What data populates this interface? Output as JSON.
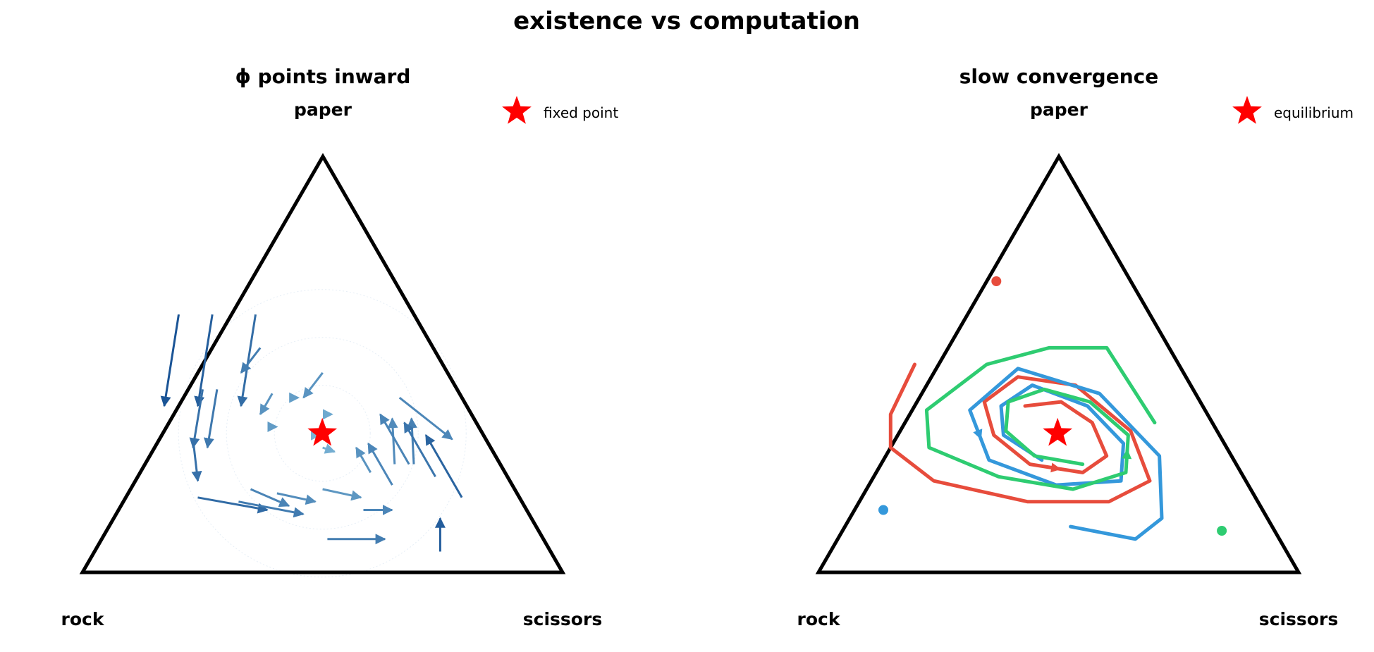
{
  "figure": {
    "title": "existence vs computation"
  },
  "chart_data": [
    {
      "type": "quiver",
      "title": "ϕ points inward",
      "vertices": {
        "top": "paper",
        "left": "rock",
        "right": "scissors"
      },
      "legend": {
        "label": "fixed point",
        "placement": "top-right"
      },
      "fixed_point": {
        "rock": 0.333,
        "paper": 0.333,
        "scissors": 0.333
      },
      "colors": {
        "arrows": "#2a6fb0",
        "triangle": "#000000",
        "star": "#ff0000"
      },
      "arrows": [
        {
          "rock": 0.49,
          "paper": 0.62,
          "scissors": -0.11,
          "d_rock": 0.14,
          "d_paper": -0.22,
          "d_scissors": 0.08
        },
        {
          "rock": 0.42,
          "paper": 0.62,
          "scissors": -0.04,
          "d_rock": 0.14,
          "d_paper": -0.22,
          "d_scissors": 0.08
        },
        {
          "rock": 0.33,
          "paper": 0.62,
          "scissors": 0.05,
          "d_rock": 0.14,
          "d_paper": -0.22,
          "d_scissors": 0.08
        },
        {
          "rock": 0.36,
          "paper": 0.54,
          "scissors": 0.1,
          "d_rock": 0.07,
          "d_paper": -0.06,
          "d_scissors": -0.01
        },
        {
          "rock": 0.26,
          "paper": 0.48,
          "scissors": 0.26,
          "d_rock": 0.07,
          "d_paper": -0.06,
          "d_scissors": -0.01
        },
        {
          "rock": 0.53,
          "paper": 0.44,
          "scissors": 0.03,
          "d_rock": 0.09,
          "d_paper": -0.14,
          "d_scissors": 0.05
        },
        {
          "rock": 0.5,
          "paper": 0.44,
          "scissors": 0.06,
          "d_rock": 0.09,
          "d_paper": -0.14,
          "d_scissors": 0.05
        },
        {
          "rock": 0.39,
          "paper": 0.43,
          "scissors": 0.18,
          "d_rock": 0.05,
          "d_paper": -0.05,
          "d_scissors": 0.0
        },
        {
          "rock": 0.34,
          "paper": 0.42,
          "scissors": 0.24,
          "d_rock": 0.0,
          "d_paper": 0.0,
          "d_scissors": 0.0
        },
        {
          "rock": 0.29,
          "paper": 0.38,
          "scissors": 0.33,
          "d_rock": 0.0,
          "d_paper": 0.0,
          "d_scissors": 0.0
        },
        {
          "rock": 0.61,
          "paper": 0.32,
          "scissors": 0.07,
          "d_rock": 0.04,
          "d_paper": -0.1,
          "d_scissors": 0.06
        },
        {
          "rock": 0.42,
          "paper": 0.35,
          "scissors": 0.23,
          "d_rock": 0.0,
          "d_paper": 0.0,
          "d_scissors": 0.0
        },
        {
          "rock": 0.34,
          "paper": 0.33,
          "scissors": 0.33,
          "d_rock": 0.0,
          "d_paper": 0.0,
          "d_scissors": 0.0
        },
        {
          "rock": 0.13,
          "paper": 0.42,
          "scissors": 0.45,
          "d_rock": -0.06,
          "d_paper": -0.1,
          "d_scissors": 0.16
        },
        {
          "rock": 0.18,
          "paper": 0.26,
          "scissors": 0.56,
          "d_rock": -0.05,
          "d_paper": 0.11,
          "d_scissors": -0.06
        },
        {
          "rock": 0.22,
          "paper": 0.26,
          "scissors": 0.52,
          "d_rock": -0.05,
          "d_paper": 0.11,
          "d_scissors": -0.06
        },
        {
          "rock": 0.55,
          "paper": 0.2,
          "scissors": 0.25,
          "d_rock": -0.06,
          "d_paper": -0.04,
          "d_scissors": 0.1
        },
        {
          "rock": 0.35,
          "paper": 0.3,
          "scissors": 0.35,
          "d_rock": -0.02,
          "d_paper": -0.01,
          "d_scissors": 0.03
        },
        {
          "rock": 0.28,
          "paper": 0.24,
          "scissors": 0.48,
          "d_rock": 0.0,
          "d_paper": 0.06,
          "d_scissors": -0.06
        },
        {
          "rock": 0.25,
          "paper": 0.21,
          "scissors": 0.54,
          "d_rock": 0.0,
          "d_paper": 0.1,
          "d_scissors": -0.1
        },
        {
          "rock": 0.12,
          "paper": 0.18,
          "scissors": 0.7,
          "d_rock": 0.0,
          "d_paper": 0.15,
          "d_scissors": -0.15
        },
        {
          "rock": 0.15,
          "paper": 0.23,
          "scissors": 0.62,
          "d_rock": 0.0,
          "d_paper": 0.13,
          "d_scissors": -0.13
        },
        {
          "rock": 0.19,
          "paper": 0.26,
          "scissors": 0.55,
          "d_rock": 0.0,
          "d_paper": 0.12,
          "d_scissors": -0.12
        },
        {
          "rock": 0.67,
          "paper": 0.18,
          "scissors": 0.15,
          "d_rock": -0.13,
          "d_paper": -0.03,
          "d_scissors": 0.16
        },
        {
          "rock": 0.59,
          "paper": 0.17,
          "scissors": 0.24,
          "d_rock": -0.12,
          "d_paper": -0.03,
          "d_scissors": 0.15
        },
        {
          "rock": 0.5,
          "paper": 0.19,
          "scissors": 0.31,
          "d_rock": -0.07,
          "d_paper": -0.02,
          "d_scissors": 0.09
        },
        {
          "rock": 0.4,
          "paper": 0.2,
          "scissors": 0.4,
          "d_rock": -0.07,
          "d_paper": -0.02,
          "d_scissors": 0.09
        },
        {
          "rock": 0.34,
          "paper": 0.15,
          "scissors": 0.51,
          "d_rock": -0.06,
          "d_paper": 0.0,
          "d_scissors": 0.06
        },
        {
          "rock": 0.45,
          "paper": 0.08,
          "scissors": 0.47,
          "d_rock": -0.12,
          "d_paper": 0.0,
          "d_scissors": 0.12
        },
        {
          "rock": 0.23,
          "paper": 0.05,
          "scissors": 0.72,
          "d_rock": -0.04,
          "d_paper": 0.08,
          "d_scissors": -0.04
        }
      ]
    },
    {
      "type": "line",
      "title": "slow convergence",
      "vertices": {
        "top": "paper",
        "left": "rock",
        "right": "scissors"
      },
      "legend": {
        "label": "equilibrium",
        "placement": "top-right"
      },
      "equilibrium": {
        "rock": 0.333,
        "paper": 0.333,
        "scissors": 0.333
      },
      "colors": {
        "triangle": "#000000",
        "star": "#ff0000"
      },
      "series": [
        {
          "color": "#e74c3c",
          "start": {
            "rock": 0.28,
            "paper": 0.7,
            "scissors": 0.02
          },
          "points": [
            {
              "rock": 0.55,
              "paper": 0.5,
              "scissors": -0.05
            },
            {
              "rock": 0.66,
              "paper": 0.38,
              "scissors": -0.04
            },
            {
              "rock": 0.7,
              "paper": 0.3,
              "scissors": 0.0
            },
            {
              "rock": 0.65,
              "paper": 0.22,
              "scissors": 0.13
            },
            {
              "rock": 0.48,
              "paper": 0.17,
              "scissors": 0.35
            },
            {
              "rock": 0.31,
              "paper": 0.17,
              "scissors": 0.52
            },
            {
              "rock": 0.2,
              "paper": 0.22,
              "scissors": 0.58
            },
            {
              "rock": 0.18,
              "paper": 0.34,
              "scissors": 0.48
            },
            {
              "rock": 0.24,
              "paper": 0.45,
              "scissors": 0.31
            },
            {
              "rock": 0.35,
              "paper": 0.47,
              "scissors": 0.18
            },
            {
              "rock": 0.45,
              "paper": 0.41,
              "scissors": 0.14
            },
            {
              "rock": 0.47,
              "paper": 0.33,
              "scissors": 0.2
            },
            {
              "rock": 0.43,
              "paper": 0.26,
              "scissors": 0.31
            },
            {
              "rock": 0.33,
              "paper": 0.24,
              "scissors": 0.43
            },
            {
              "rock": 0.26,
              "paper": 0.28,
              "scissors": 0.46
            },
            {
              "rock": 0.25,
              "paper": 0.36,
              "scissors": 0.39
            },
            {
              "rock": 0.29,
              "paper": 0.41,
              "scissors": 0.3
            },
            {
              "rock": 0.37,
              "paper": 0.4,
              "scissors": 0.23
            }
          ],
          "arrow_at": 12
        },
        {
          "color": "#3498db",
          "start": {
            "rock": 0.79,
            "paper": 0.15,
            "scissors": 0.06
          },
          "points": [
            {
              "rock": 0.42,
              "paper": 0.11,
              "scissors": 0.47
            },
            {
              "rock": 0.3,
              "paper": 0.08,
              "scissors": 0.62
            },
            {
              "rock": 0.22,
              "paper": 0.13,
              "scissors": 0.65
            },
            {
              "rock": 0.15,
              "paper": 0.28,
              "scissors": 0.57
            },
            {
              "rock": 0.2,
              "paper": 0.43,
              "scissors": 0.37
            },
            {
              "rock": 0.34,
              "paper": 0.49,
              "scissors": 0.17
            },
            {
              "rock": 0.49,
              "paper": 0.39,
              "scissors": 0.12
            },
            {
              "rock": 0.51,
              "paper": 0.27,
              "scissors": 0.22
            },
            {
              "rock": 0.4,
              "paper": 0.21,
              "scissors": 0.39
            },
            {
              "rock": 0.26,
              "paper": 0.22,
              "scissors": 0.52
            },
            {
              "rock": 0.21,
              "paper": 0.31,
              "scissors": 0.48
            },
            {
              "rock": 0.24,
              "paper": 0.4,
              "scissors": 0.36
            },
            {
              "rock": 0.33,
              "paper": 0.45,
              "scissors": 0.22
            },
            {
              "rock": 0.42,
              "paper": 0.4,
              "scissors": 0.18
            },
            {
              "rock": 0.45,
              "paper": 0.33,
              "scissors": 0.22
            },
            {
              "rock": 0.4,
              "paper": 0.27,
              "scissors": 0.33
            }
          ],
          "arrow_at": 6
        },
        {
          "color": "#2ecc71",
          "start": {
            "rock": 0.11,
            "paper": 0.1,
            "scissors": 0.79
          },
          "points": [
            {
              "rock": 0.12,
              "paper": 0.36,
              "scissors": 0.52
            },
            {
              "rock": 0.13,
              "paper": 0.54,
              "scissors": 0.33
            },
            {
              "rock": 0.25,
              "paper": 0.54,
              "scissors": 0.21
            },
            {
              "rock": 0.4,
              "paper": 0.5,
              "scissors": 0.1
            },
            {
              "rock": 0.58,
              "paper": 0.39,
              "scissors": 0.03
            },
            {
              "rock": 0.62,
              "paper": 0.3,
              "scissors": 0.08
            },
            {
              "rock": 0.51,
              "paper": 0.23,
              "scissors": 0.26
            },
            {
              "rock": 0.37,
              "paper": 0.2,
              "scissors": 0.43
            },
            {
              "rock": 0.24,
              "paper": 0.24,
              "scissors": 0.52
            },
            {
              "rock": 0.19,
              "paper": 0.33,
              "scissors": 0.48
            },
            {
              "rock": 0.23,
              "paper": 0.41,
              "scissors": 0.36
            },
            {
              "rock": 0.31,
              "paper": 0.44,
              "scissors": 0.25
            },
            {
              "rock": 0.4,
              "paper": 0.41,
              "scissors": 0.19
            },
            {
              "rock": 0.44,
              "paper": 0.34,
              "scissors": 0.22
            },
            {
              "rock": 0.41,
              "paper": 0.28,
              "scissors": 0.31
            },
            {
              "rock": 0.32,
              "paper": 0.26,
              "scissors": 0.42
            }
          ],
          "arrow_at": 8
        }
      ]
    }
  ]
}
